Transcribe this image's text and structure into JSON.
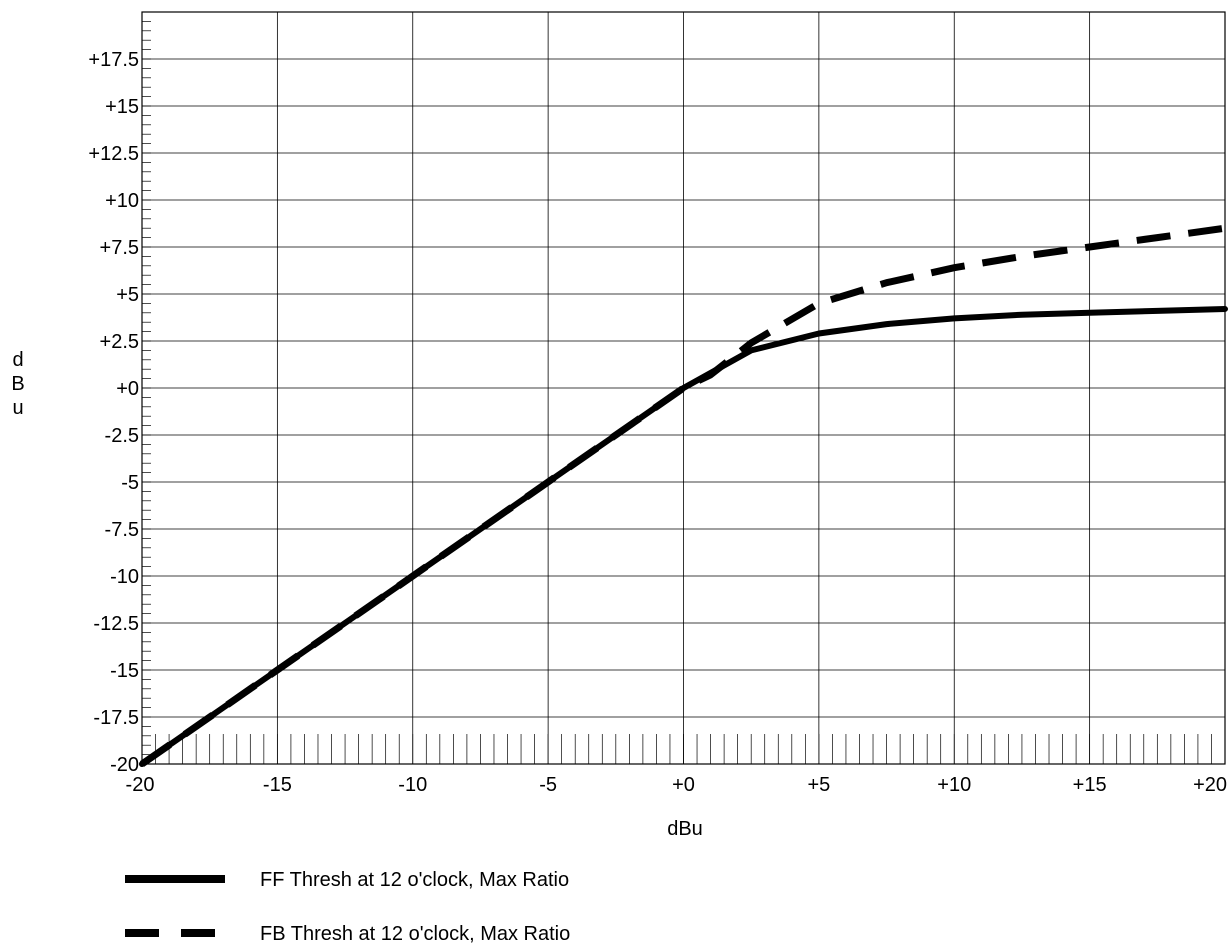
{
  "chart_data": {
    "type": "line",
    "title": "",
    "xlabel": "dBu",
    "ylabel": "dBu",
    "xlim": [
      -20,
      20
    ],
    "ylim": [
      -20,
      20
    ],
    "x_ticks": [
      -20,
      -15,
      -10,
      -5,
      0,
      5,
      10,
      15,
      20
    ],
    "x_tick_labels": [
      "-20",
      "-15",
      "-10",
      "-5",
      "+0",
      "+5",
      "+10",
      "+15",
      "+20"
    ],
    "y_ticks": [
      -20,
      -17.5,
      -15,
      -12.5,
      -10,
      -7.5,
      -5,
      -2.5,
      0,
      2.5,
      5,
      7.5,
      10,
      12.5,
      15,
      17.5
    ],
    "y_tick_labels": [
      "-20",
      "-17.5",
      "-15",
      "-12.5",
      "-10",
      "-7.5",
      "-5",
      "-2.5",
      "+0",
      "+2.5",
      "+5",
      "+7.5",
      "+10",
      "+12.5",
      "+15",
      "+17.5"
    ],
    "grid": true,
    "legend_position": "bottom-left",
    "series": [
      {
        "name": "FF Thresh at 12 o'clock, Max Ratio",
        "style": "solid",
        "color": "#000000",
        "x": [
          -20,
          -15,
          -10,
          -5,
          0,
          2.5,
          5,
          7.5,
          10,
          12.5,
          15,
          17.5,
          20
        ],
        "y": [
          -20,
          -15,
          -10,
          -5,
          0,
          2.0,
          2.9,
          3.4,
          3.7,
          3.9,
          4.0,
          4.1,
          4.2
        ]
      },
      {
        "name": "FB Thresh at 12 o'clock, Max Ratio",
        "style": "dashed",
        "color": "#000000",
        "x": [
          -20,
          -15,
          -10,
          -5,
          0,
          1,
          2.5,
          5,
          7.5,
          10,
          12.5,
          15,
          17.5,
          20
        ],
        "y": [
          -20,
          -15,
          -10,
          -5,
          0,
          0.7,
          2.4,
          4.5,
          5.6,
          6.4,
          7.0,
          7.5,
          8.0,
          8.5
        ]
      }
    ]
  }
}
